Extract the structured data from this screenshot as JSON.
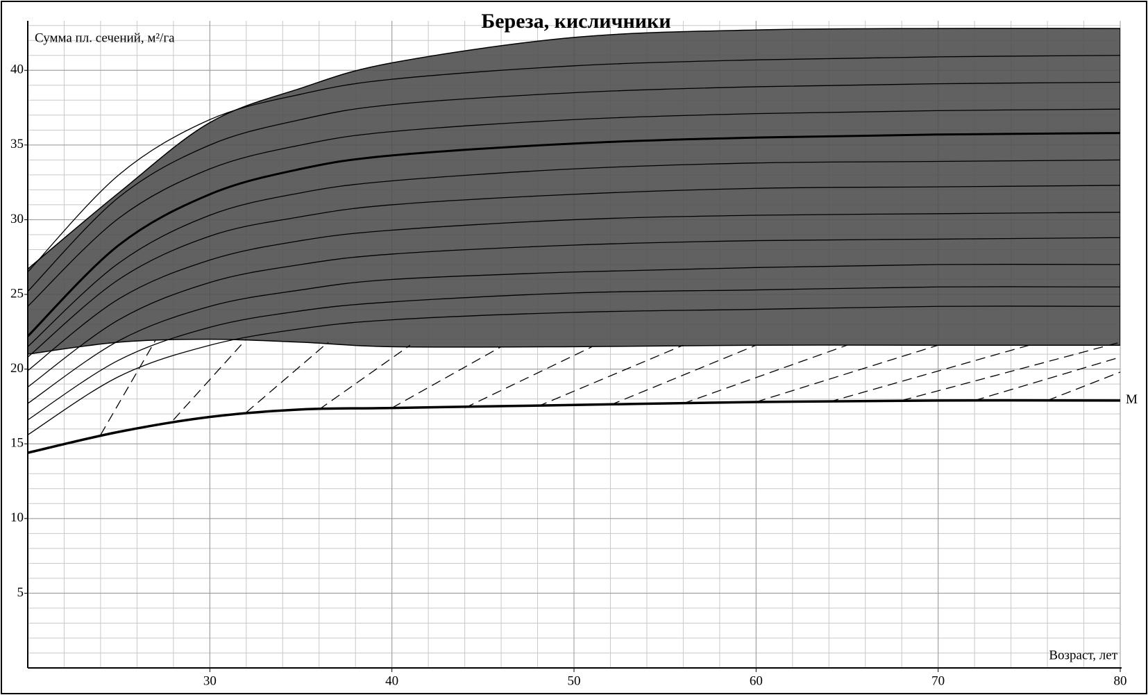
{
  "chart_data": {
    "type": "line",
    "title": "Береза, кисличники",
    "y_label": "Сумма пл. сечений, м²/га",
    "x_label": "Возраст, лет",
    "xlim": [
      20,
      80
    ],
    "ylim": [
      0,
      42.8
    ],
    "xticks": [
      30,
      40,
      50,
      60,
      70,
      80
    ],
    "yticks": [
      5,
      10,
      15,
      20,
      25,
      30,
      35,
      40
    ],
    "grid": true,
    "x": [
      20,
      25,
      30,
      35,
      40,
      50,
      60,
      70,
      80
    ],
    "band": {
      "color": "#505050",
      "upper": [
        26.7,
        31.8,
        36.5,
        38.8,
        40.5,
        42.2,
        42.7,
        42.8,
        42.8
      ],
      "lower": [
        21,
        21.8,
        22,
        21.8,
        21.5,
        21.5,
        21.6,
        21.6,
        21.6
      ]
    },
    "series": [
      {
        "color": "#000000",
        "width": 1.3,
        "values": [
          26.5,
          33.0,
          36.7,
          38.4,
          39.4,
          40.3,
          40.7,
          40.9,
          41.0
        ]
      },
      {
        "color": "#000000",
        "width": 1.3,
        "values": [
          25.2,
          31.5,
          35.0,
          36.7,
          37.7,
          38.5,
          38.9,
          39.1,
          39.2
        ]
      },
      {
        "color": "#000000",
        "width": 1.3,
        "values": [
          24.2,
          30.1,
          33.4,
          35.0,
          35.9,
          36.7,
          37.1,
          37.3,
          37.4
        ]
      },
      {
        "color": "#000000",
        "width": 3,
        "values": [
          22.2,
          28.3,
          31.7,
          33.4,
          34.3,
          35.1,
          35.5,
          35.7,
          35.8
        ]
      },
      {
        "color": "#000000",
        "width": 1.3,
        "values": [
          21.5,
          27.1,
          30.3,
          31.8,
          32.6,
          33.4,
          33.8,
          33.9,
          34.0
        ]
      },
      {
        "color": "#000000",
        "width": 1.3,
        "values": [
          20.8,
          26.0,
          28.9,
          30.2,
          31.0,
          31.7,
          32.1,
          32.2,
          32.3
        ]
      },
      {
        "color": "#000000",
        "width": 1.3,
        "values": [
          19.9,
          24.7,
          27.3,
          28.6,
          29.3,
          30.0,
          30.3,
          30.4,
          30.5
        ]
      },
      {
        "color": "#000000",
        "width": 1.3,
        "values": [
          18.8,
          23.3,
          25.8,
          27.0,
          27.7,
          28.3,
          28.6,
          28.7,
          28.8
        ]
      },
      {
        "color": "#000000",
        "width": 1.3,
        "values": [
          17.7,
          21.9,
          24.2,
          25.3,
          26.0,
          26.5,
          26.8,
          27.0,
          27.0
        ]
      },
      {
        "color": "#000000",
        "width": 1.3,
        "values": [
          16.6,
          20.6,
          22.8,
          23.9,
          24.5,
          25.1,
          25.3,
          25.5,
          25.5
        ]
      },
      {
        "color": "#000000",
        "width": 1.3,
        "values": [
          15.6,
          19.5,
          21.6,
          22.7,
          23.3,
          23.8,
          24.0,
          24.2,
          24.2
        ]
      },
      {
        "name": "М",
        "color": "#000000",
        "width": 3.5,
        "values": [
          14.4,
          15.8,
          16.8,
          17.3,
          17.4,
          17.6,
          17.8,
          17.9,
          17.9
        ]
      },
      {
        "color": "#000000",
        "width": 1.3,
        "dashed": true,
        "x": [
          24,
          27
        ],
        "values": [
          15.6,
          21.9
        ]
      },
      {
        "color": "#000000",
        "width": 1.3,
        "dashed": true,
        "x": [
          28,
          32
        ],
        "values": [
          16.6,
          22
        ]
      },
      {
        "color": "#000000",
        "width": 1.3,
        "dashed": true,
        "x": [
          32,
          36.5
        ],
        "values": [
          17.1,
          21.8
        ]
      },
      {
        "color": "#000000",
        "width": 1.3,
        "dashed": true,
        "x": [
          36,
          41
        ],
        "values": [
          17.3,
          21.6
        ]
      },
      {
        "color": "#000000",
        "width": 1.3,
        "dashed": true,
        "x": [
          40,
          46
        ],
        "values": [
          17.4,
          21.5
        ]
      },
      {
        "color": "#000000",
        "width": 1.3,
        "dashed": true,
        "x": [
          44,
          51
        ],
        "values": [
          17.4,
          21.5
        ]
      },
      {
        "color": "#000000",
        "width": 1.3,
        "dashed": true,
        "x": [
          48,
          56
        ],
        "values": [
          17.5,
          21.6
        ]
      },
      {
        "color": "#000000",
        "width": 1.3,
        "dashed": true,
        "x": [
          52,
          60
        ],
        "values": [
          17.6,
          21.6
        ]
      },
      {
        "color": "#000000",
        "width": 1.3,
        "dashed": true,
        "x": [
          56,
          65
        ],
        "values": [
          17.7,
          21.6
        ]
      },
      {
        "color": "#000000",
        "width": 1.3,
        "dashed": true,
        "x": [
          60,
          70
        ],
        "values": [
          17.8,
          21.6
        ]
      },
      {
        "color": "#000000",
        "width": 1.3,
        "dashed": true,
        "x": [
          64,
          75
        ],
        "values": [
          17.8,
          21.6
        ]
      },
      {
        "color": "#000000",
        "width": 1.3,
        "dashed": true,
        "x": [
          68,
          80
        ],
        "values": [
          17.9,
          21.8
        ]
      },
      {
        "color": "#000000",
        "width": 1.3,
        "dashed": true,
        "x": [
          72,
          80
        ],
        "values": [
          17.9,
          20.8
        ]
      },
      {
        "color": "#000000",
        "width": 1.3,
        "dashed": true,
        "x": [
          76,
          80
        ],
        "values": [
          17.9,
          19.8
        ]
      }
    ]
  }
}
